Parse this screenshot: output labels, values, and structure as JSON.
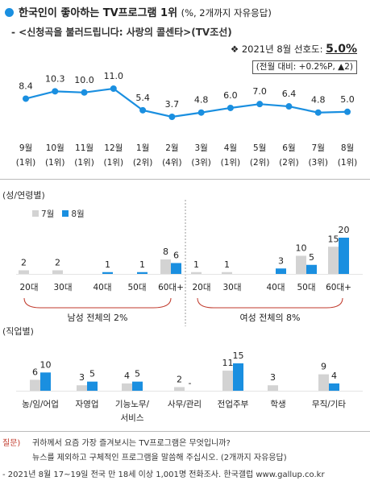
{
  "header": {
    "title": "한국인이 좋아하는 TV프로그램 1위",
    "title_note": "(%, 2개까지 자유응답)",
    "subtitle": "- <신청곡을 불러드립니다: 사랑의 콜센타>(TV조선)",
    "pref_prefix": "❖ 2021년 8월 선호도:",
    "pref_value": "5.0%",
    "change": "(전월 대비: +0.2%P, ▲2)"
  },
  "colors": {
    "accent": "#1a8fe0",
    "gray": "#d3d3d3",
    "line": "#1a8fe0",
    "curve": "#c0392b",
    "question": "#c0392b"
  },
  "chart_data": [
    {
      "type": "line",
      "name": "monthly-trend",
      "categories": [
        "9월",
        "10월",
        "11월",
        "12월",
        "1월",
        "2월",
        "3월",
        "4월",
        "5월",
        "6월",
        "7월",
        "8월"
      ],
      "ranks": [
        "(1위)",
        "(1위)",
        "(1위)",
        "(1위)",
        "(2위)",
        "(4위)",
        "(3위)",
        "(1위)",
        "(2위)",
        "(2위)",
        "(3위)",
        "(1위)"
      ],
      "values": [
        8.4,
        10.3,
        10.0,
        11.0,
        5.4,
        3.7,
        4.8,
        6.0,
        7.0,
        6.4,
        4.8,
        5.0
      ],
      "labels": [
        "8.4",
        "10.3",
        "10.0",
        "11.0",
        "5.4",
        "3.7",
        "4.8",
        "6.0",
        "7.0",
        "6.4",
        "4.8",
        "5.0"
      ]
    },
    {
      "type": "bar",
      "name": "gender-age",
      "section_label": "(성/연령별)",
      "series": [
        {
          "name": "7월",
          "values": [
            2,
            2,
            0,
            0,
            8,
            1,
            1,
            0,
            10,
            15
          ]
        },
        {
          "name": "8월",
          "values": [
            0,
            0,
            1,
            1,
            6,
            0,
            0,
            3,
            5,
            20
          ]
        }
      ],
      "value_labels": {
        "7월": [
          "2",
          "2",
          "",
          "",
          "8",
          "1",
          "1",
          "",
          "10",
          "15"
        ],
        "8월": [
          "",
          "",
          "1",
          "1",
          "6",
          "",
          "",
          "3",
          "5",
          "20"
        ]
      },
      "categories": [
        "20대",
        "30대",
        "40대",
        "50대",
        "60대+",
        "20대",
        "30대",
        "40대",
        "50대",
        "60대+"
      ],
      "groups": [
        "남성 전체의 2%",
        "여성 전체의 8%"
      ]
    },
    {
      "type": "bar",
      "name": "occupation",
      "section_label": "(직업별)",
      "series": [
        {
          "name": "7월",
          "values": [
            6,
            3,
            4,
            2,
            11,
            3,
            9
          ]
        },
        {
          "name": "8월",
          "values": [
            10,
            5,
            5,
            0,
            15,
            0,
            4
          ]
        }
      ],
      "value_labels": {
        "7월": [
          "6",
          "3",
          "4",
          "2",
          "11",
          "3",
          "9"
        ],
        "8월": [
          "10",
          "5",
          "5",
          "-",
          "15",
          "",
          "4"
        ]
      },
      "categories": [
        "농/임/어업",
        "자영업",
        "기능노무/\n서비스",
        "사무/관리",
        "전업주부",
        "학생",
        "무직/기타"
      ]
    }
  ],
  "footer": {
    "q_label": "질문)",
    "q_text": "귀하께서 요즘 가장 즐겨보시는 TV프로그램은 무엇입니까?",
    "q_text2": "뉴스를 제외하고 구체적인 프로그램을 말씀해 주십시오. (2개까지 자유응답)",
    "source": "- 2021년 8월 17~19일 전국 만 18세 이상 1,001명 전화조사. 한국갤럽 www.gallup.co.kr"
  }
}
